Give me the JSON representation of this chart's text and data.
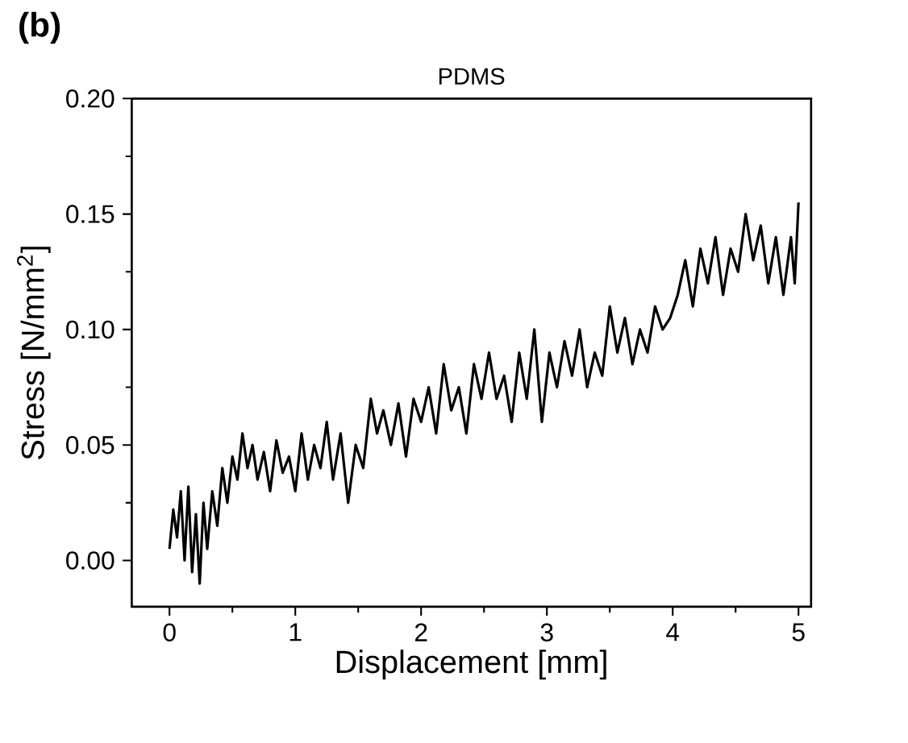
{
  "chart_data": {
    "type": "line",
    "title": "PDMS",
    "annotations": [
      "(b)"
    ],
    "xlabel": "Displacement [mm]",
    "ylabel": "Stress [N/mm$^{2}$]",
    "xlim": [
      -0.3,
      5.1
    ],
    "ylim": [
      -0.02,
      0.2
    ],
    "xticks": [
      0,
      1,
      2,
      3,
      4,
      5
    ],
    "yticks": [
      {
        "value": 0,
        "label": "0.00"
      },
      0.05,
      {
        "value": 0.1,
        "label": "0.10"
      },
      0.15,
      {
        "value": 0.2,
        "label": "0.20"
      }
    ],
    "grid": false,
    "marker": "none",
    "line_style": "solid",
    "series": [
      {
        "color": "#000000",
        "x": [
          0.0,
          0.03,
          0.06,
          0.09,
          0.12,
          0.15,
          0.18,
          0.21,
          0.24,
          0.27,
          0.3,
          0.34,
          0.38,
          0.42,
          0.46,
          0.5,
          0.54,
          0.58,
          0.62,
          0.66,
          0.7,
          0.75,
          0.8,
          0.85,
          0.9,
          0.95,
          1.0,
          1.05,
          1.1,
          1.15,
          1.2,
          1.25,
          1.3,
          1.36,
          1.42,
          1.48,
          1.54,
          1.6,
          1.65,
          1.7,
          1.76,
          1.82,
          1.88,
          1.94,
          2.0,
          2.06,
          2.12,
          2.18,
          2.24,
          2.3,
          2.36,
          2.42,
          2.48,
          2.54,
          2.6,
          2.66,
          2.72,
          2.78,
          2.84,
          2.9,
          2.96,
          3.02,
          3.08,
          3.14,
          3.2,
          3.26,
          3.32,
          3.38,
          3.44,
          3.5,
          3.56,
          3.62,
          3.68,
          3.74,
          3.8,
          3.86,
          3.92,
          3.98,
          4.04,
          4.1,
          4.16,
          4.22,
          4.28,
          4.34,
          4.4,
          4.46,
          4.52,
          4.58,
          4.64,
          4.7,
          4.76,
          4.82,
          4.88,
          4.94,
          4.97,
          5.0
        ],
        "values": [
          0.005,
          0.022,
          0.01,
          0.03,
          0.0,
          0.032,
          -0.005,
          0.02,
          -0.01,
          0.025,
          0.005,
          0.03,
          0.015,
          0.04,
          0.025,
          0.045,
          0.035,
          0.055,
          0.04,
          0.05,
          0.035,
          0.047,
          0.03,
          0.052,
          0.038,
          0.045,
          0.03,
          0.055,
          0.035,
          0.05,
          0.04,
          0.06,
          0.035,
          0.055,
          0.025,
          0.05,
          0.04,
          0.07,
          0.055,
          0.065,
          0.05,
          0.068,
          0.045,
          0.07,
          0.06,
          0.075,
          0.055,
          0.085,
          0.065,
          0.075,
          0.055,
          0.085,
          0.07,
          0.09,
          0.07,
          0.08,
          0.06,
          0.09,
          0.07,
          0.1,
          0.06,
          0.09,
          0.075,
          0.095,
          0.08,
          0.1,
          0.075,
          0.09,
          0.08,
          0.11,
          0.09,
          0.105,
          0.085,
          0.1,
          0.09,
          0.11,
          0.1,
          0.105,
          0.115,
          0.13,
          0.11,
          0.135,
          0.12,
          0.14,
          0.115,
          0.135,
          0.125,
          0.15,
          0.13,
          0.145,
          0.12,
          0.14,
          0.115,
          0.14,
          0.12,
          0.155
        ]
      }
    ]
  }
}
